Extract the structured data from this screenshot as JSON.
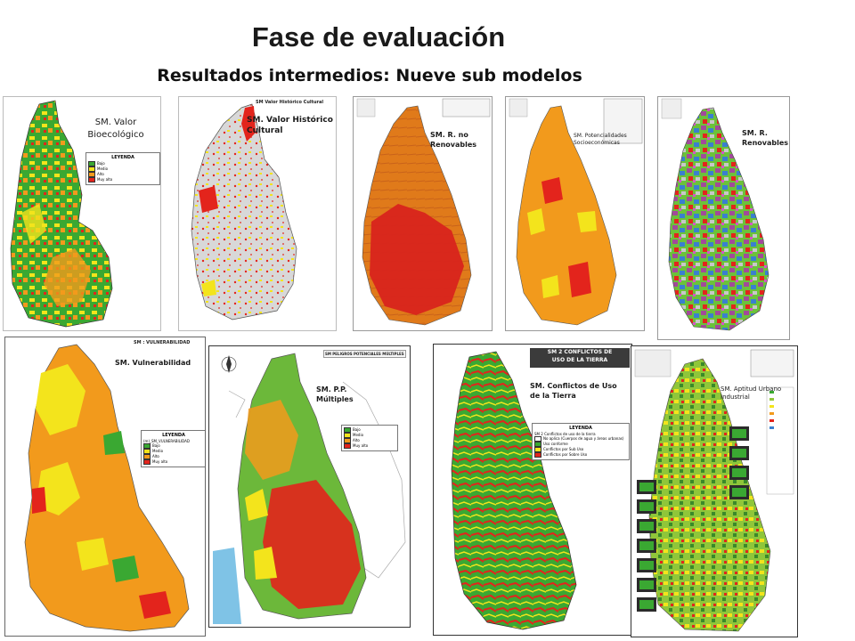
{
  "slide": {
    "title": "Fase de evaluación",
    "subtitle": "Resultados intermedios: Nueve sub modelos"
  },
  "maps": {
    "m1": {
      "label_line1": "SM. Valor",
      "label_line2": "Bioecológico",
      "legend_title": "LEYENDA",
      "legend_items": [
        "Bajo",
        "Medio",
        "Alto",
        "Muy alto"
      ]
    },
    "m2": {
      "header": "SM Valor Histórico Cultural",
      "label_line1": "SM. Valor Histórico",
      "label_line2": "Cultural"
    },
    "m3": {
      "label_line1": "SM. R. no",
      "label_line2": "Renovables"
    },
    "m4": {
      "label_line1": "SM. Potencialidades",
      "label_line2": "Socioeconómicas"
    },
    "m5": {
      "label_line1": "SM. R.",
      "label_line2": "Renovables"
    },
    "m6": {
      "header": "SM : VULNERABILIDAD",
      "label": "SM. Vulnerabilidad",
      "legend_title": "LEYENDA",
      "legend_subtitle": "(m)_SM_VULNERABILIDAD",
      "legend_items": [
        "Bajo",
        "Medio",
        "Alto",
        "Muy alto"
      ]
    },
    "m7": {
      "header": "SM PELIGROS POTENCIALES MÚLTIPLES",
      "label_line1": "SM. P.P.",
      "label_line2": "Múltiples",
      "legend_items": [
        "Bajo",
        "Medio",
        "Alto",
        "Muy alto"
      ]
    },
    "m8": {
      "header_line1": "SM 2 CONFLICTOS DE",
      "header_line2": "USO DE LA TIERRA",
      "label_line1": "SM. Conflictos de Uso",
      "label_line2": "de la Tierra",
      "legend_title": "LEYENDA",
      "legend_subtitle": "SM 2 Conflictos de uso de la tierra",
      "legend_items": [
        "No aplica (Cuerpos de agua y áreas urbanas)",
        "Uso conforme",
        "Conflictos por Sub Uso",
        "Conflictos por Sobre Uso"
      ]
    },
    "m9": {
      "label_line1": "SM. Aptitud Urbano",
      "label_line2": "Industrial"
    }
  },
  "colors": {
    "bajo": "#3aa832",
    "medio": "#f3e41c",
    "alto": "#f29a1c",
    "muy_alto": "#e3241c",
    "grey": "#d8d8d8",
    "sea": "#7fc3e6"
  }
}
